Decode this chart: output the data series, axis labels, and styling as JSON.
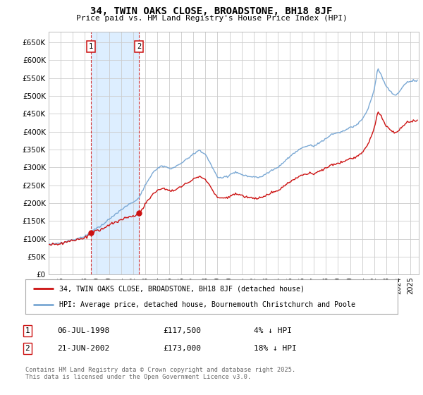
{
  "title": "34, TWIN OAKS CLOSE, BROADSTONE, BH18 8JF",
  "subtitle": "Price paid vs. HM Land Registry's House Price Index (HPI)",
  "legend_label_1": "34, TWIN OAKS CLOSE, BROADSTONE, BH18 8JF (detached house)",
  "legend_label_2": "HPI: Average price, detached house, Bournemouth Christchurch and Poole",
  "annotation1_date": "06-JUL-1998",
  "annotation1_price": 117500,
  "annotation1_year": 1998.54,
  "annotation1_note": "4% ↓ HPI",
  "annotation2_date": "21-JUN-2002",
  "annotation2_price": 173000,
  "annotation2_year": 2002.47,
  "annotation2_note": "18% ↓ HPI",
  "footer": "Contains HM Land Registry data © Crown copyright and database right 2025.\nThis data is licensed under the Open Government Licence v3.0.",
  "hpi_color": "#7aa8d4",
  "price_color": "#cc1111",
  "annotation_color": "#cc1111",
  "background_color": "#ffffff",
  "grid_color": "#cccccc",
  "shaded_region_color": "#ddeeff",
  "ylim": [
    0,
    680000
  ],
  "yticks": [
    0,
    50000,
    100000,
    150000,
    200000,
    250000,
    300000,
    350000,
    400000,
    450000,
    500000,
    550000,
    600000,
    650000
  ],
  "xmin": 1995.0,
  "xmax": 2025.7
}
